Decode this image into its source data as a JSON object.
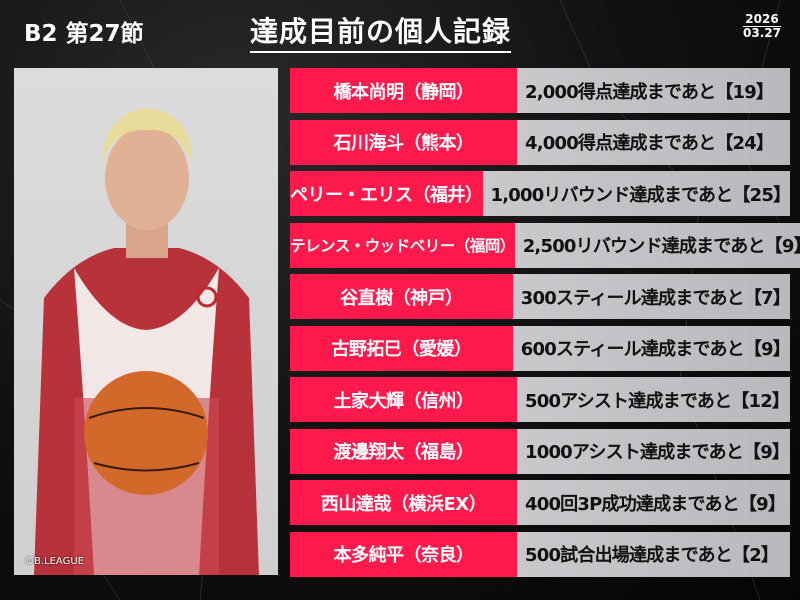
{
  "header": {
    "league": "B2 第27節",
    "title": "達成目前の個人記録",
    "date_year": "2026",
    "date_md": "03.27"
  },
  "photo": {
    "credit": "©B.LEAGUE",
    "jersey_color": "#b8323a"
  },
  "colors": {
    "name_bg": "#ff1a4b",
    "record_bg": "#c4c4c7"
  },
  "records": [
    {
      "player": "橋本尚明（静岡）",
      "record": "2,000得点達成まであと【19】"
    },
    {
      "player": "石川海斗（熊本）",
      "record": "4,000得点達成まであと【24】"
    },
    {
      "player": "ペリー・エリス（福井）",
      "record": "1,000リバウンド達成まであと【25】"
    },
    {
      "player": "テレンス・ウッドベリー（福岡）",
      "record": "2,500リバウンド達成まであと【9】"
    },
    {
      "player": "谷直樹（神戸）",
      "record": "300スティール達成まであと【7】"
    },
    {
      "player": "古野拓巳（愛媛）",
      "record": "600スティール達成まであと【9】"
    },
    {
      "player": "土家大輝（信州）",
      "record": "500アシスト達成まであと【12】"
    },
    {
      "player": "渡邊翔太（福島）",
      "record": "1000アシスト達成まであと【9】"
    },
    {
      "player": "西山達哉（横浜EX）",
      "record": "400回3P成功達成まであと【9】"
    },
    {
      "player": "本多純平（奈良）",
      "record": "500試合出場達成まであと【2】"
    }
  ]
}
